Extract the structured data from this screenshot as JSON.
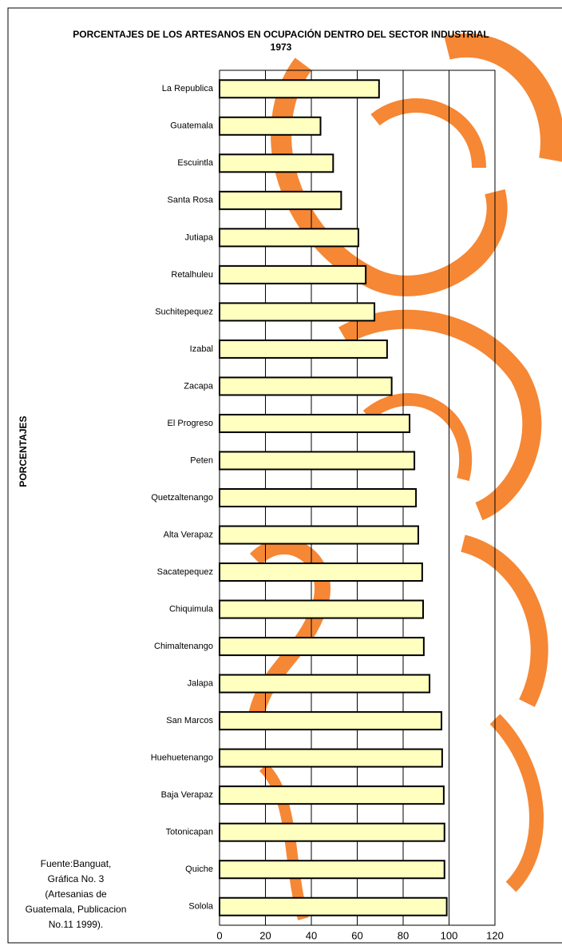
{
  "chart_data": {
    "type": "bar",
    "orientation": "horizontal",
    "title": "PORCENTAJES DE LOS ARTESANOS EN OCUPACIÓN DENTRO DEL SECTOR INDUSTRIAL",
    "subtitle": "1973",
    "y_label": "PORCENTAJES",
    "note": [
      "Fuente:Banguat,",
      "Gráfica No. 3",
      "(Artesanias de",
      "Guatemala, Publicacion",
      "No.11 1999)."
    ],
    "categories": [
      "La Republica",
      "Guatemala",
      "Escuintla",
      "Santa Rosa",
      "Jutiapa",
      "Retalhuleu",
      "Suchitepequez",
      "Izabal",
      "Zacapa",
      "El Progreso",
      "Peten",
      "Quetzaltenango",
      "Alta Verapaz",
      "Sacatepequez",
      "Chiquimula",
      "Chimaltenango",
      "Jalapa",
      "San Marcos",
      "Huehuetenango",
      "Baja Verapaz",
      "Totonicapan",
      "Quiche",
      "Solola"
    ],
    "values": [
      69.5,
      44,
      49.5,
      53,
      60.5,
      63.7,
      67.5,
      73,
      75,
      82.8,
      84.9,
      85.6,
      86.6,
      88.3,
      88.7,
      89,
      91.5,
      96.7,
      97,
      97.7,
      98,
      98,
      99
    ],
    "color": "#ffffc0",
    "xlim": [
      0,
      120
    ],
    "xticks": [
      0,
      20,
      40,
      60,
      80,
      100,
      120
    ],
    "grid": true
  }
}
